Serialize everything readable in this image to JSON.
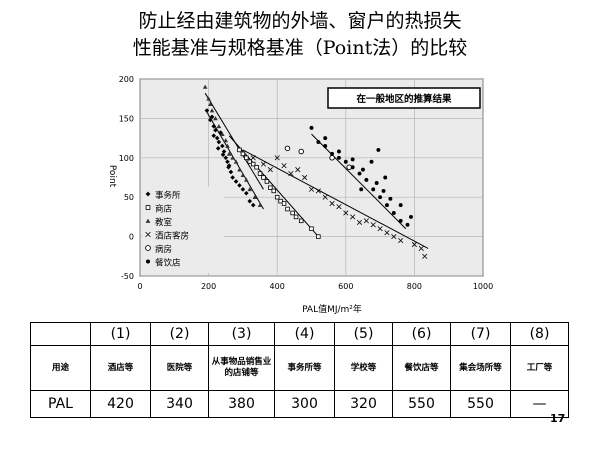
{
  "title": {
    "line1": "防止经由建筑物的外墙、窗户的热损失",
    "line2": "性能基准与规格基准（Point法）的比较"
  },
  "chart_data": {
    "type": "scatter",
    "annotation": "在一般地区的推算结果",
    "xlabel": "PAL值MJ/m²年",
    "ylabel": "Point",
    "xlim": [
      0,
      1000
    ],
    "ylim": [
      -50,
      200
    ],
    "xticks": [
      "0",
      "200",
      "400",
      "600",
      "800",
      "1000"
    ],
    "yticks": [
      "-50",
      "0",
      "50",
      "100",
      "150",
      "200"
    ],
    "grid": true,
    "legend_position": "left-bottom",
    "series": [
      {
        "name": "事务所",
        "marker": "diamond",
        "points": [
          [
            195,
            160
          ],
          [
            205,
            148
          ],
          [
            210,
            152
          ],
          [
            215,
            140
          ],
          [
            220,
            135
          ],
          [
            225,
            125
          ],
          [
            230,
            120
          ],
          [
            235,
            132
          ],
          [
            240,
            115
          ],
          [
            245,
            108
          ],
          [
            250,
            100
          ],
          [
            255,
            95
          ],
          [
            260,
            90
          ],
          [
            265,
            82
          ],
          [
            270,
            75
          ],
          [
            280,
            70
          ],
          [
            290,
            65
          ],
          [
            300,
            60
          ],
          [
            310,
            55
          ],
          [
            320,
            45
          ],
          [
            330,
            40
          ],
          [
            215,
            128
          ],
          [
            228,
            112
          ],
          [
            242,
            104
          ],
          [
            258,
            88
          ]
        ],
        "trend": [
          [
            195,
            158
          ],
          [
            360,
            35
          ]
        ]
      },
      {
        "name": "商店",
        "marker": "square",
        "points": [
          [
            290,
            110
          ],
          [
            300,
            105
          ],
          [
            310,
            100
          ],
          [
            320,
            95
          ],
          [
            330,
            92
          ],
          [
            340,
            88
          ],
          [
            350,
            80
          ],
          [
            360,
            75
          ],
          [
            370,
            70
          ],
          [
            380,
            62
          ],
          [
            390,
            58
          ],
          [
            400,
            50
          ],
          [
            410,
            45
          ],
          [
            420,
            42
          ],
          [
            430,
            35
          ],
          [
            445,
            30
          ],
          [
            455,
            25
          ],
          [
            470,
            20
          ],
          [
            500,
            10
          ],
          [
            520,
            0
          ]
        ],
        "trend": [
          [
            260,
            128
          ],
          [
            520,
            0
          ]
        ]
      },
      {
        "name": "教室",
        "marker": "triangle",
        "points": [
          [
            190,
            190
          ],
          [
            200,
            175
          ],
          [
            205,
            168
          ],
          [
            210,
            160
          ],
          [
            220,
            150
          ],
          [
            230,
            140
          ],
          [
            240,
            130
          ],
          [
            250,
            122
          ],
          [
            255,
            115
          ],
          [
            260,
            105
          ],
          [
            270,
            100
          ],
          [
            280,
            95
          ],
          [
            290,
            85
          ],
          [
            300,
            78
          ],
          [
            310,
            72
          ],
          [
            320,
            60
          ],
          [
            335,
            50
          ],
          [
            350,
            40
          ]
        ],
        "trend": [
          [
            190,
            182
          ],
          [
            360,
            60
          ]
        ]
      },
      {
        "name": "酒店客房",
        "marker": "x",
        "points": [
          [
            330,
            100
          ],
          [
            360,
            92
          ],
          [
            380,
            85
          ],
          [
            400,
            100
          ],
          [
            420,
            90
          ],
          [
            440,
            80
          ],
          [
            460,
            85
          ],
          [
            480,
            75
          ],
          [
            500,
            60
          ],
          [
            520,
            58
          ],
          [
            540,
            50
          ],
          [
            560,
            42
          ],
          [
            580,
            38
          ],
          [
            600,
            30
          ],
          [
            620,
            25
          ],
          [
            640,
            18
          ],
          [
            660,
            20
          ],
          [
            680,
            15
          ],
          [
            700,
            10
          ],
          [
            720,
            5
          ],
          [
            740,
            0
          ],
          [
            760,
            -5
          ],
          [
            800,
            -10
          ],
          [
            820,
            -15
          ],
          [
            830,
            -25
          ]
        ],
        "trend": [
          [
            300,
            110
          ],
          [
            840,
            -15
          ]
        ]
      },
      {
        "name": "病房",
        "marker": "circle",
        "points": [
          [
            430,
            112
          ],
          [
            470,
            108
          ],
          [
            560,
            100
          ],
          [
            610,
            88
          ]
        ],
        "trend": []
      },
      {
        "name": "餐饮店",
        "marker": "dot",
        "points": [
          [
            500,
            138
          ],
          [
            520,
            120
          ],
          [
            540,
            115
          ],
          [
            560,
            105
          ],
          [
            580,
            100
          ],
          [
            600,
            95
          ],
          [
            620,
            88
          ],
          [
            640,
            80
          ],
          [
            660,
            72
          ],
          [
            680,
            60
          ],
          [
            700,
            50
          ],
          [
            720,
            40
          ],
          [
            740,
            30
          ],
          [
            760,
            20
          ],
          [
            780,
            15
          ],
          [
            540,
            125
          ],
          [
            580,
            108
          ],
          [
            620,
            98
          ],
          [
            650,
            85
          ],
          [
            690,
            68
          ],
          [
            710,
            58
          ],
          [
            730,
            48
          ],
          [
            760,
            40
          ],
          [
            790,
            25
          ],
          [
            695,
            110
          ],
          [
            675,
            95
          ],
          [
            715,
            75
          ],
          [
            645,
            60
          ]
        ],
        "trend": [
          [
            500,
            130
          ],
          [
            775,
            10
          ]
        ]
      }
    ]
  },
  "table": {
    "numbers": [
      "",
      "(1)",
      "(2)",
      "(3)",
      "(4)",
      "(5)",
      "(6)",
      "(7)",
      "(8)"
    ],
    "uses": [
      "用途",
      "酒店等",
      "医院等",
      "从事物品销售业的店铺等",
      "事务所等",
      "学校等",
      "餐饮店等",
      "集会场所等",
      "工厂等"
    ],
    "pal": [
      "PAL",
      "420",
      "340",
      "380",
      "300",
      "320",
      "550",
      "550",
      "—"
    ]
  },
  "page_number": "17"
}
